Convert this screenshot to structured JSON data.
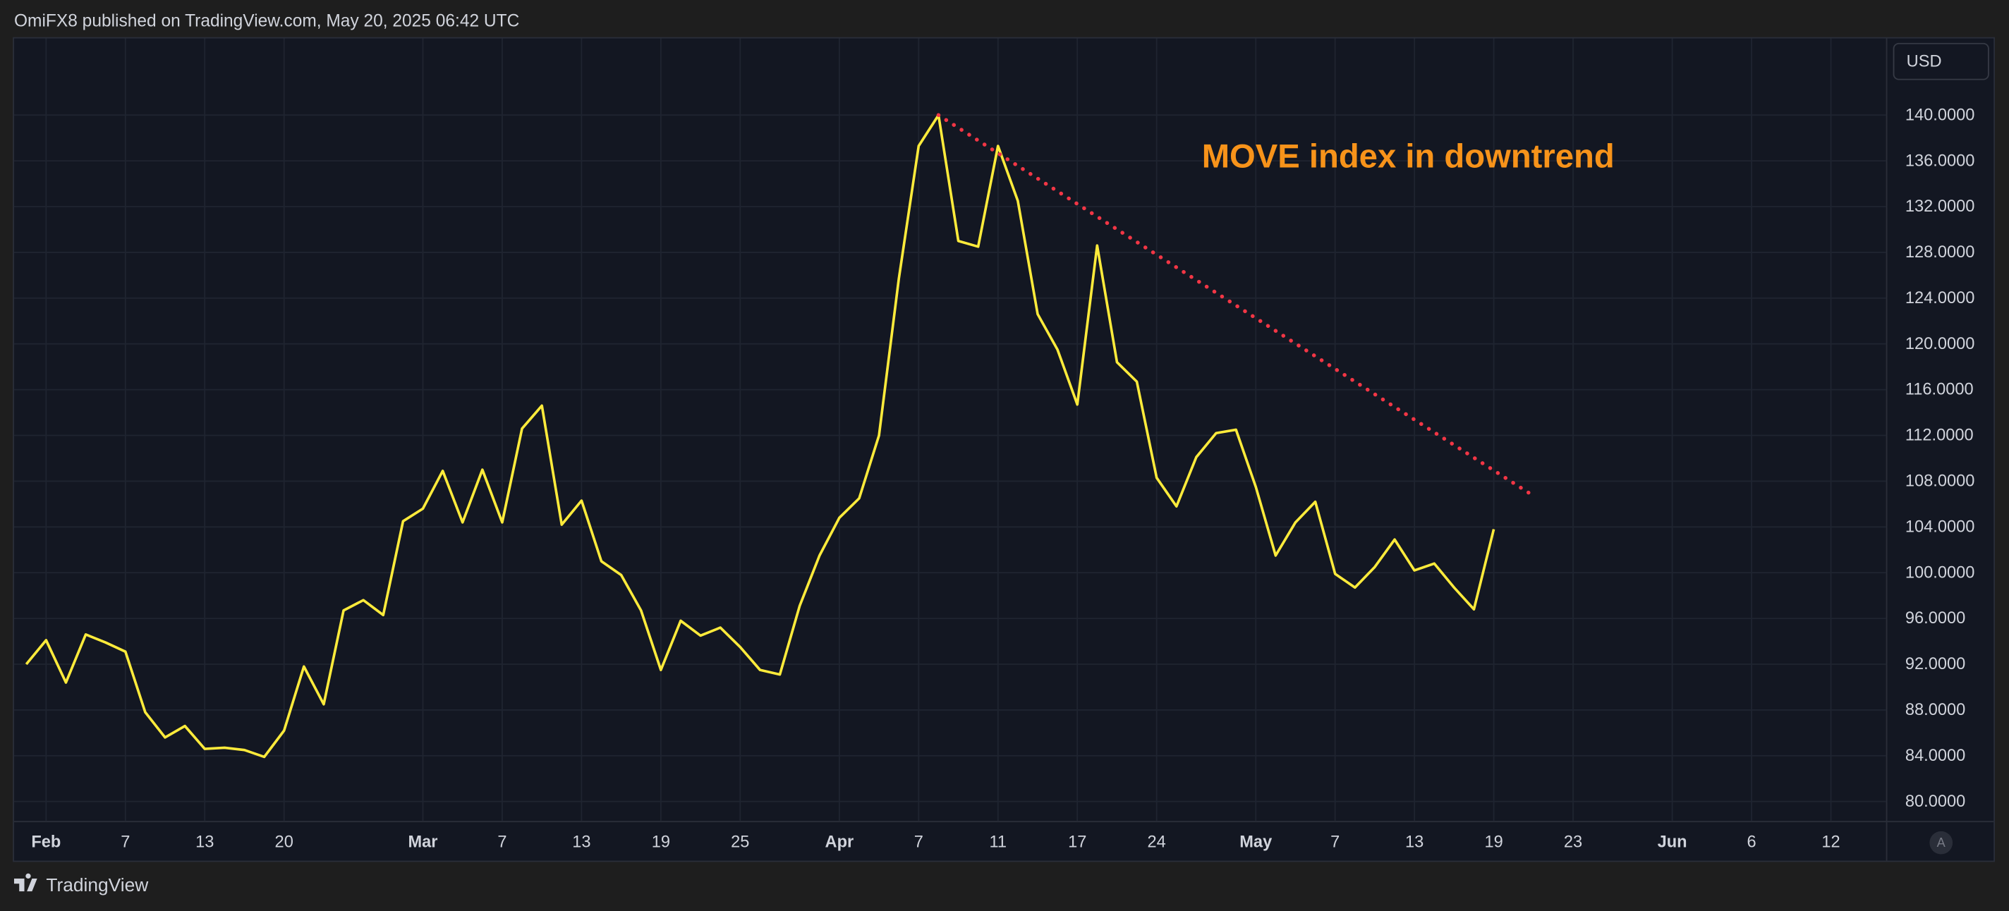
{
  "header": {
    "text": "OmiFX8 published on TradingView.com, May 20, 2025 06:42 UTC"
  },
  "footer": {
    "brand": "TradingView"
  },
  "price_axis": {
    "currency": "USD",
    "auto_button": "A"
  },
  "chart_data": {
    "type": "line",
    "categories": [
      null,
      "Feb",
      null,
      null,
      null,
      "7",
      null,
      null,
      null,
      "13",
      null,
      null,
      null,
      "20",
      null,
      null,
      null,
      null,
      null,
      null,
      "Mar",
      null,
      null,
      null,
      "7",
      null,
      null,
      null,
      "13",
      null,
      null,
      null,
      "19",
      null,
      null,
      null,
      "25",
      null,
      null,
      null,
      null,
      "Apr",
      null,
      null,
      null,
      "7",
      null,
      null,
      null,
      "11",
      null,
      null,
      null,
      "17",
      null,
      null,
      null,
      "24",
      null,
      null,
      null,
      null,
      "May",
      null,
      null,
      null,
      "7",
      null,
      null,
      null,
      "13",
      null,
      null,
      null,
      "19",
      null,
      null,
      null,
      "23",
      null,
      null,
      null,
      null,
      "Jun",
      null,
      null,
      null,
      "6",
      null,
      null,
      null,
      "12",
      null,
      null
    ],
    "series": [
      {
        "color": "#ffeb3b",
        "values": [
          92.0,
          94.1,
          90.4,
          94.6,
          93.9,
          93.1,
          87.8,
          85.6,
          86.6,
          84.6,
          84.7,
          84.5,
          83.9,
          86.2,
          91.8,
          88.5,
          96.7,
          97.6,
          96.3,
          104.5,
          105.6,
          108.9,
          104.4,
          109.0,
          104.4,
          112.6,
          114.6,
          104.2,
          106.3,
          101.0,
          99.8,
          96.7,
          91.5,
          95.8,
          94.5,
          95.2,
          93.5,
          91.5,
          91.1,
          97.1,
          101.5,
          104.8,
          106.5,
          112.0,
          125.7,
          137.3,
          140.0,
          129.0,
          128.5,
          137.3,
          132.5,
          122.6,
          119.5,
          114.7,
          128.6,
          118.4,
          116.7,
          108.3,
          105.8,
          110.1,
          112.2,
          112.5,
          107.5,
          101.5,
          104.4,
          106.2,
          99.9,
          98.7,
          100.5,
          102.9,
          100.2,
          100.8,
          98.7,
          96.8,
          103.8,
          null,
          null,
          null,
          null,
          null,
          null,
          null,
          null,
          null,
          null,
          null,
          null,
          null,
          null,
          null,
          null,
          null,
          null,
          null
        ]
      }
    ],
    "trendline": {
      "color": "#f23645",
      "start": [
        46,
        140.0
      ],
      "end": [
        75.75,
        107.0
      ]
    },
    "annotation": {
      "text": "MOVE index in downtrend",
      "color": "#f7931a"
    },
    "ylim": [
      78.3,
      146.7
    ],
    "yticks": [
      {
        "value": 80,
        "label": "80.0000"
      },
      {
        "value": 84,
        "label": "84.0000"
      },
      {
        "value": 88,
        "label": "88.0000"
      },
      {
        "value": 92,
        "label": "92.0000"
      },
      {
        "value": 96,
        "label": "96.0000"
      },
      {
        "value": 100,
        "label": "100.0000"
      },
      {
        "value": 104,
        "label": "104.0000"
      },
      {
        "value": 108,
        "label": "108.0000"
      },
      {
        "value": 112,
        "label": "112.0000"
      },
      {
        "value": 116,
        "label": "116.0000"
      },
      {
        "value": 120,
        "label": "120.0000"
      },
      {
        "value": 124,
        "label": "124.0000"
      },
      {
        "value": 128,
        "label": "128.0000"
      },
      {
        "value": 132,
        "label": "132.0000"
      },
      {
        "value": 136,
        "label": "136.0000"
      },
      {
        "value": 140,
        "label": "140.0000"
      }
    ],
    "grid": true
  }
}
